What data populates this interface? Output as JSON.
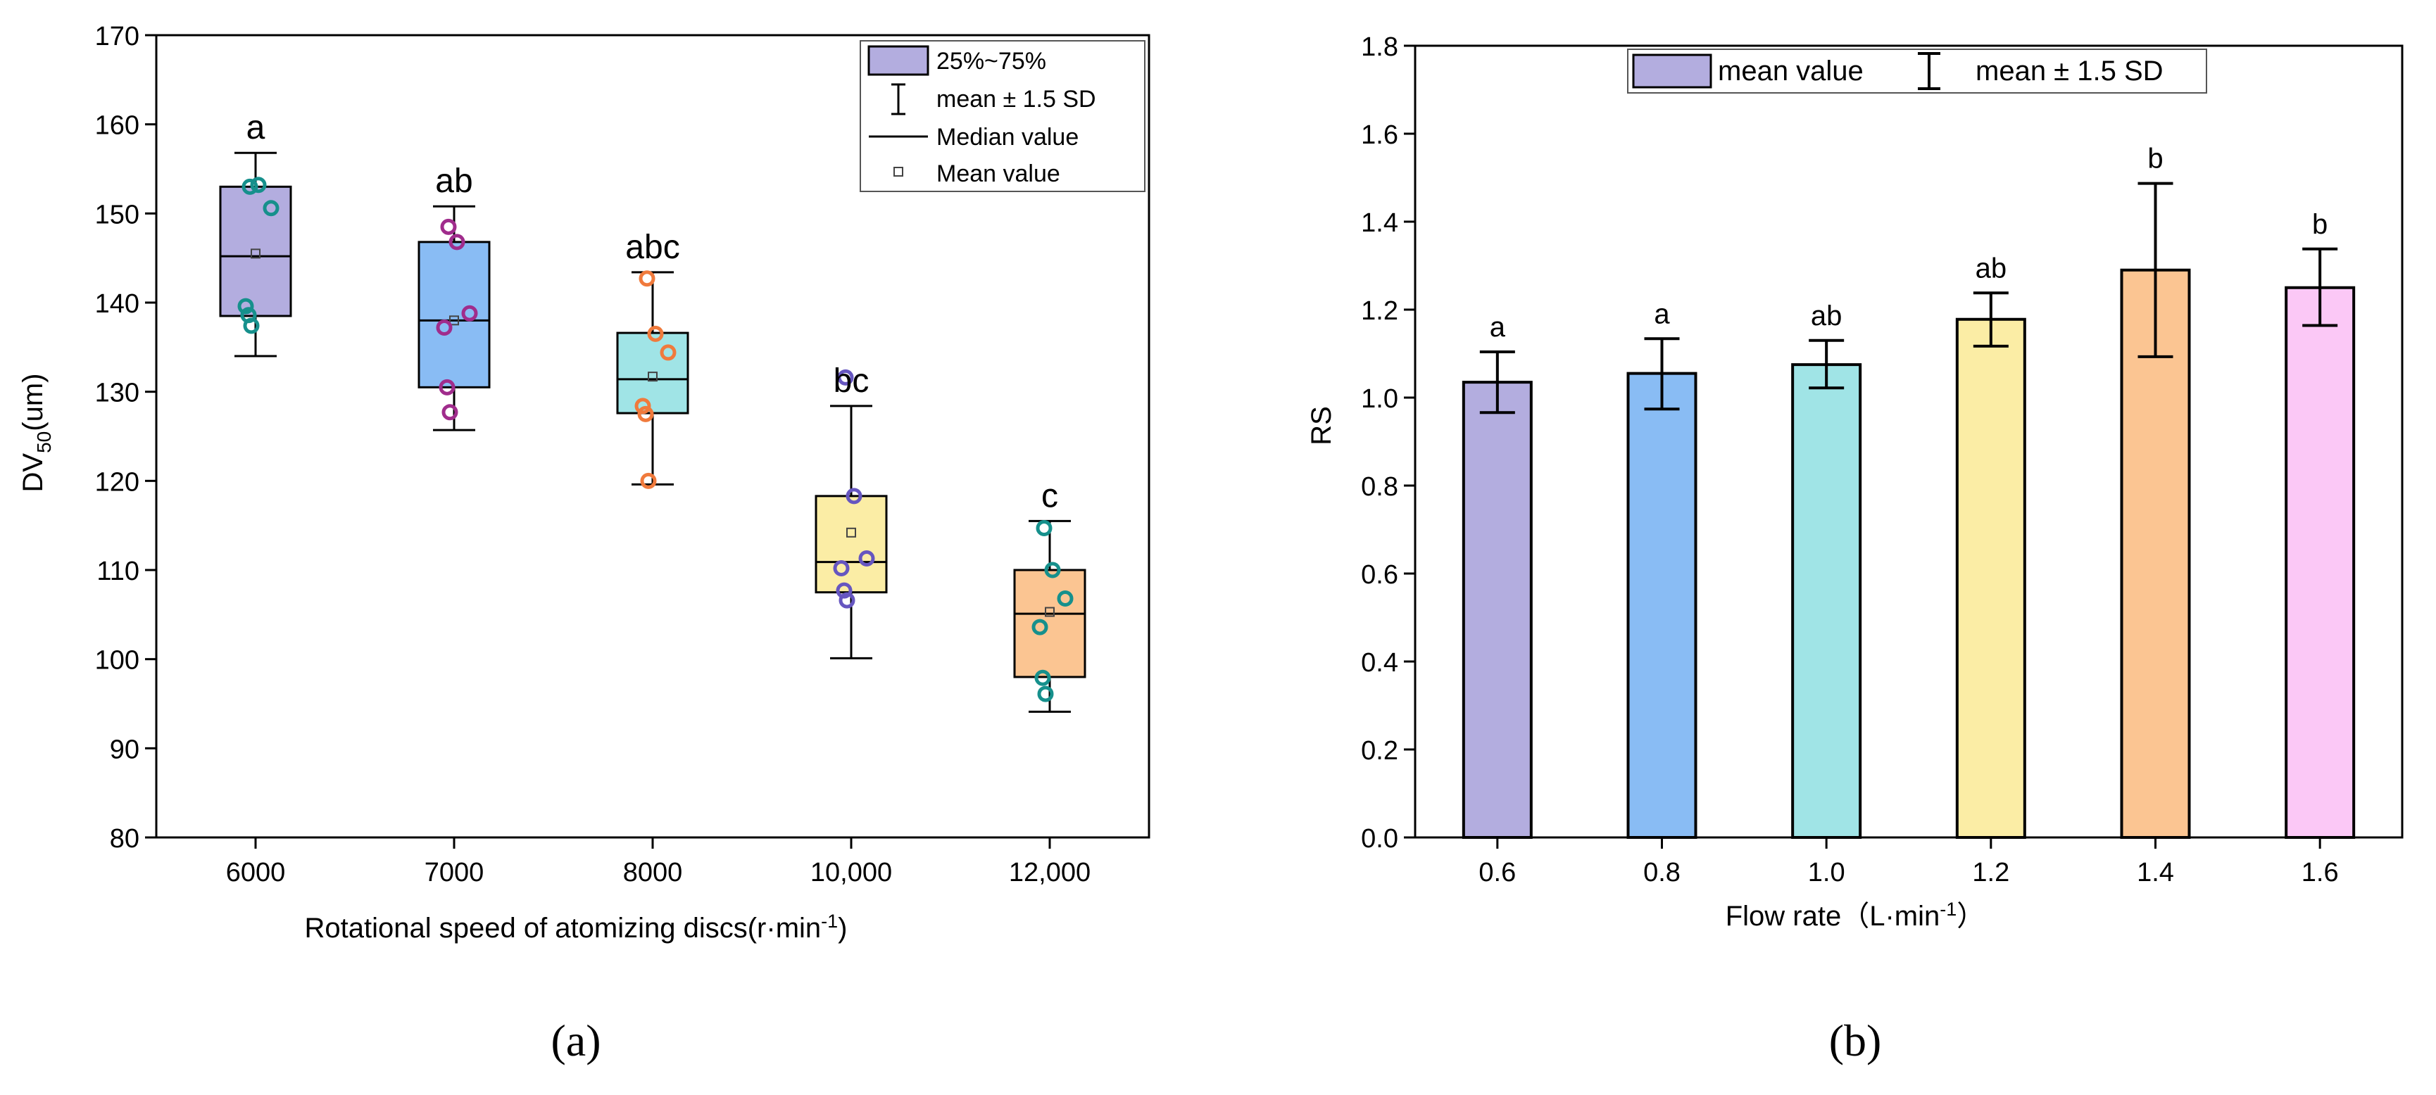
{
  "chart_data": [
    {
      "panel_label": "(a)",
      "type": "box",
      "xlabel": {
        "main": "Rotational speed of atomizing discs(r·min",
        "sup": "-1",
        "tail": ")"
      },
      "ylabel": {
        "main": "DV",
        "sub": "50",
        "tail": "(um)"
      },
      "ylim": [
        80,
        170
      ],
      "yticks": [
        "80",
        "90",
        "100",
        "110",
        "120",
        "130",
        "140",
        "150",
        "160",
        "170"
      ],
      "categories": [
        "6000",
        "7000",
        "8000",
        "10,000",
        "12,000"
      ],
      "legend": {
        "placement": "top-right",
        "entries": [
          "25%~75%",
          "mean ± 1.5 SD",
          "Median value",
          "Mean value"
        ]
      },
      "boxes": [
        {
          "category": "6000",
          "q1": 138.5,
          "median": 145.2,
          "q3": 153.0,
          "whisker_low": 134.0,
          "whisker_high": 156.8,
          "mean": 145.5,
          "letter": "a",
          "fill": "#b3addf",
          "point_color": "#16908c",
          "points": [
            153.0,
            153.2,
            150.6,
            139.6,
            138.6,
            137.4
          ]
        },
        {
          "category": "7000",
          "q1": 130.5,
          "median": 138.0,
          "q3": 146.8,
          "whisker_low": 125.7,
          "whisker_high": 150.8,
          "mean": 138.0,
          "letter": "ab",
          "fill": "#89bcf4",
          "point_color": "#a02c8c",
          "points": [
            148.5,
            146.8,
            138.8,
            137.2,
            130.5,
            127.7
          ]
        },
        {
          "category": "8000",
          "q1": 127.6,
          "median": 131.4,
          "q3": 136.6,
          "whisker_low": 119.6,
          "whisker_high": 143.4,
          "mean": 131.7,
          "letter": "abc",
          "fill": "#a0e4e6",
          "point_color": "#f07a3c",
          "points": [
            142.7,
            136.5,
            134.4,
            128.4,
            127.5,
            120.0
          ]
        },
        {
          "category": "10,000",
          "q1": 107.5,
          "median": 110.9,
          "q3": 118.3,
          "whisker_low": 100.1,
          "whisker_high": 128.4,
          "mean": 114.2,
          "letter": "bc",
          "fill": "#fbeda5",
          "point_color": "#6656c0",
          "points": [
            131.6,
            118.3,
            111.3,
            110.2,
            107.7,
            106.6
          ]
        },
        {
          "category": "12,000",
          "q1": 98.0,
          "median": 105.1,
          "q3": 110.0,
          "whisker_low": 94.1,
          "whisker_high": 115.5,
          "mean": 105.3,
          "letter": "c",
          "fill": "#fbc592",
          "point_color": "#16908c",
          "points": [
            114.7,
            110.0,
            106.8,
            103.6,
            97.9,
            96.1
          ]
        }
      ]
    },
    {
      "panel_label": "(b)",
      "type": "bar",
      "xlabel": {
        "main": "Flow rate（L·min",
        "sup": "-1",
        "tail": "）"
      },
      "ylabel": "RS",
      "ylim": [
        0,
        1.8
      ],
      "yticks": [
        "0.0",
        "0.2",
        "0.4",
        "0.6",
        "0.8",
        "1.0",
        "1.2",
        "1.4",
        "1.6",
        "1.8"
      ],
      "categories": [
        "0.6",
        "0.8",
        "1.0",
        "1.2",
        "1.4",
        "1.6"
      ],
      "legend": {
        "placement": "top-center",
        "entries": [
          "mean value",
          "mean ± 1.5 SD"
        ]
      },
      "values": [
        1.035,
        1.055,
        1.075,
        1.178,
        1.29,
        1.25
      ],
      "err_low": [
        0.966,
        0.974,
        1.022,
        1.117,
        1.093,
        1.164
      ],
      "err_high": [
        1.104,
        1.134,
        1.13,
        1.238,
        1.487,
        1.338
      ],
      "letters": [
        "a",
        "a",
        "ab",
        "ab",
        "b",
        "b"
      ],
      "colors": [
        "#b3addf",
        "#89bcf4",
        "#a0e4e6",
        "#fbeda5",
        "#fbc592",
        "#fbc8f6"
      ],
      "legend_fill": "#b3addf"
    }
  ]
}
